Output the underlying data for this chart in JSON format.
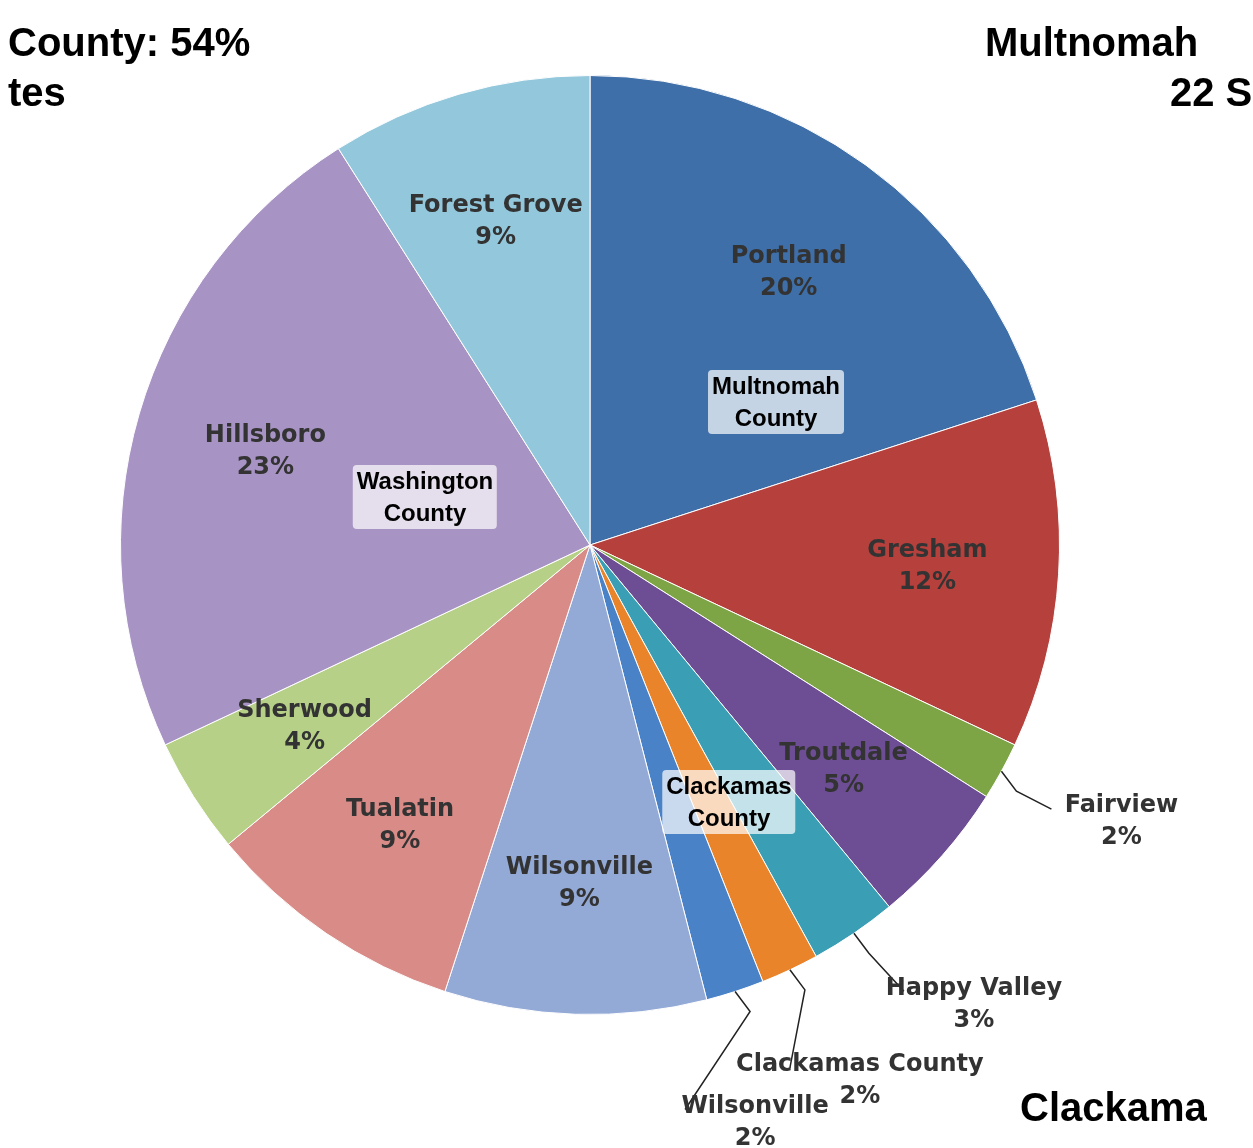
{
  "chart_data": {
    "type": "pie",
    "categories": [
      "Portland",
      "Gresham",
      "Fairview",
      "Troutdale",
      "Happy Valley",
      "Clackamas County",
      "Wilsonville",
      "Wilsonville",
      "Tualatin",
      "Sherwood",
      "Hillsboro",
      "Forest Grove"
    ],
    "values": [
      20,
      12,
      2,
      5,
      3,
      2,
      2,
      9,
      9,
      4,
      23,
      9
    ],
    "value_labels": [
      "20%",
      "12%",
      "2%",
      "5%",
      "3%",
      "2%",
      "2%",
      "9%",
      "9%",
      "4%",
      "23%",
      "9%"
    ],
    "colors": [
      "#3f6fa8",
      "#b5403c",
      "#7da545",
      "#6d4d93",
      "#3a9eb5",
      "#e9842a",
      "#4a82c8",
      "#93a9d6",
      "#d88b87",
      "#b6d088",
      "#a894c4",
      "#93c8dc"
    ],
    "annotations": [
      "County: 54%",
      "tes",
      "Multnomah",
      "22 S",
      "Clackama",
      "Multnomah County",
      "Washington County",
      "Clackamas County"
    ],
    "legend": false
  }
}
